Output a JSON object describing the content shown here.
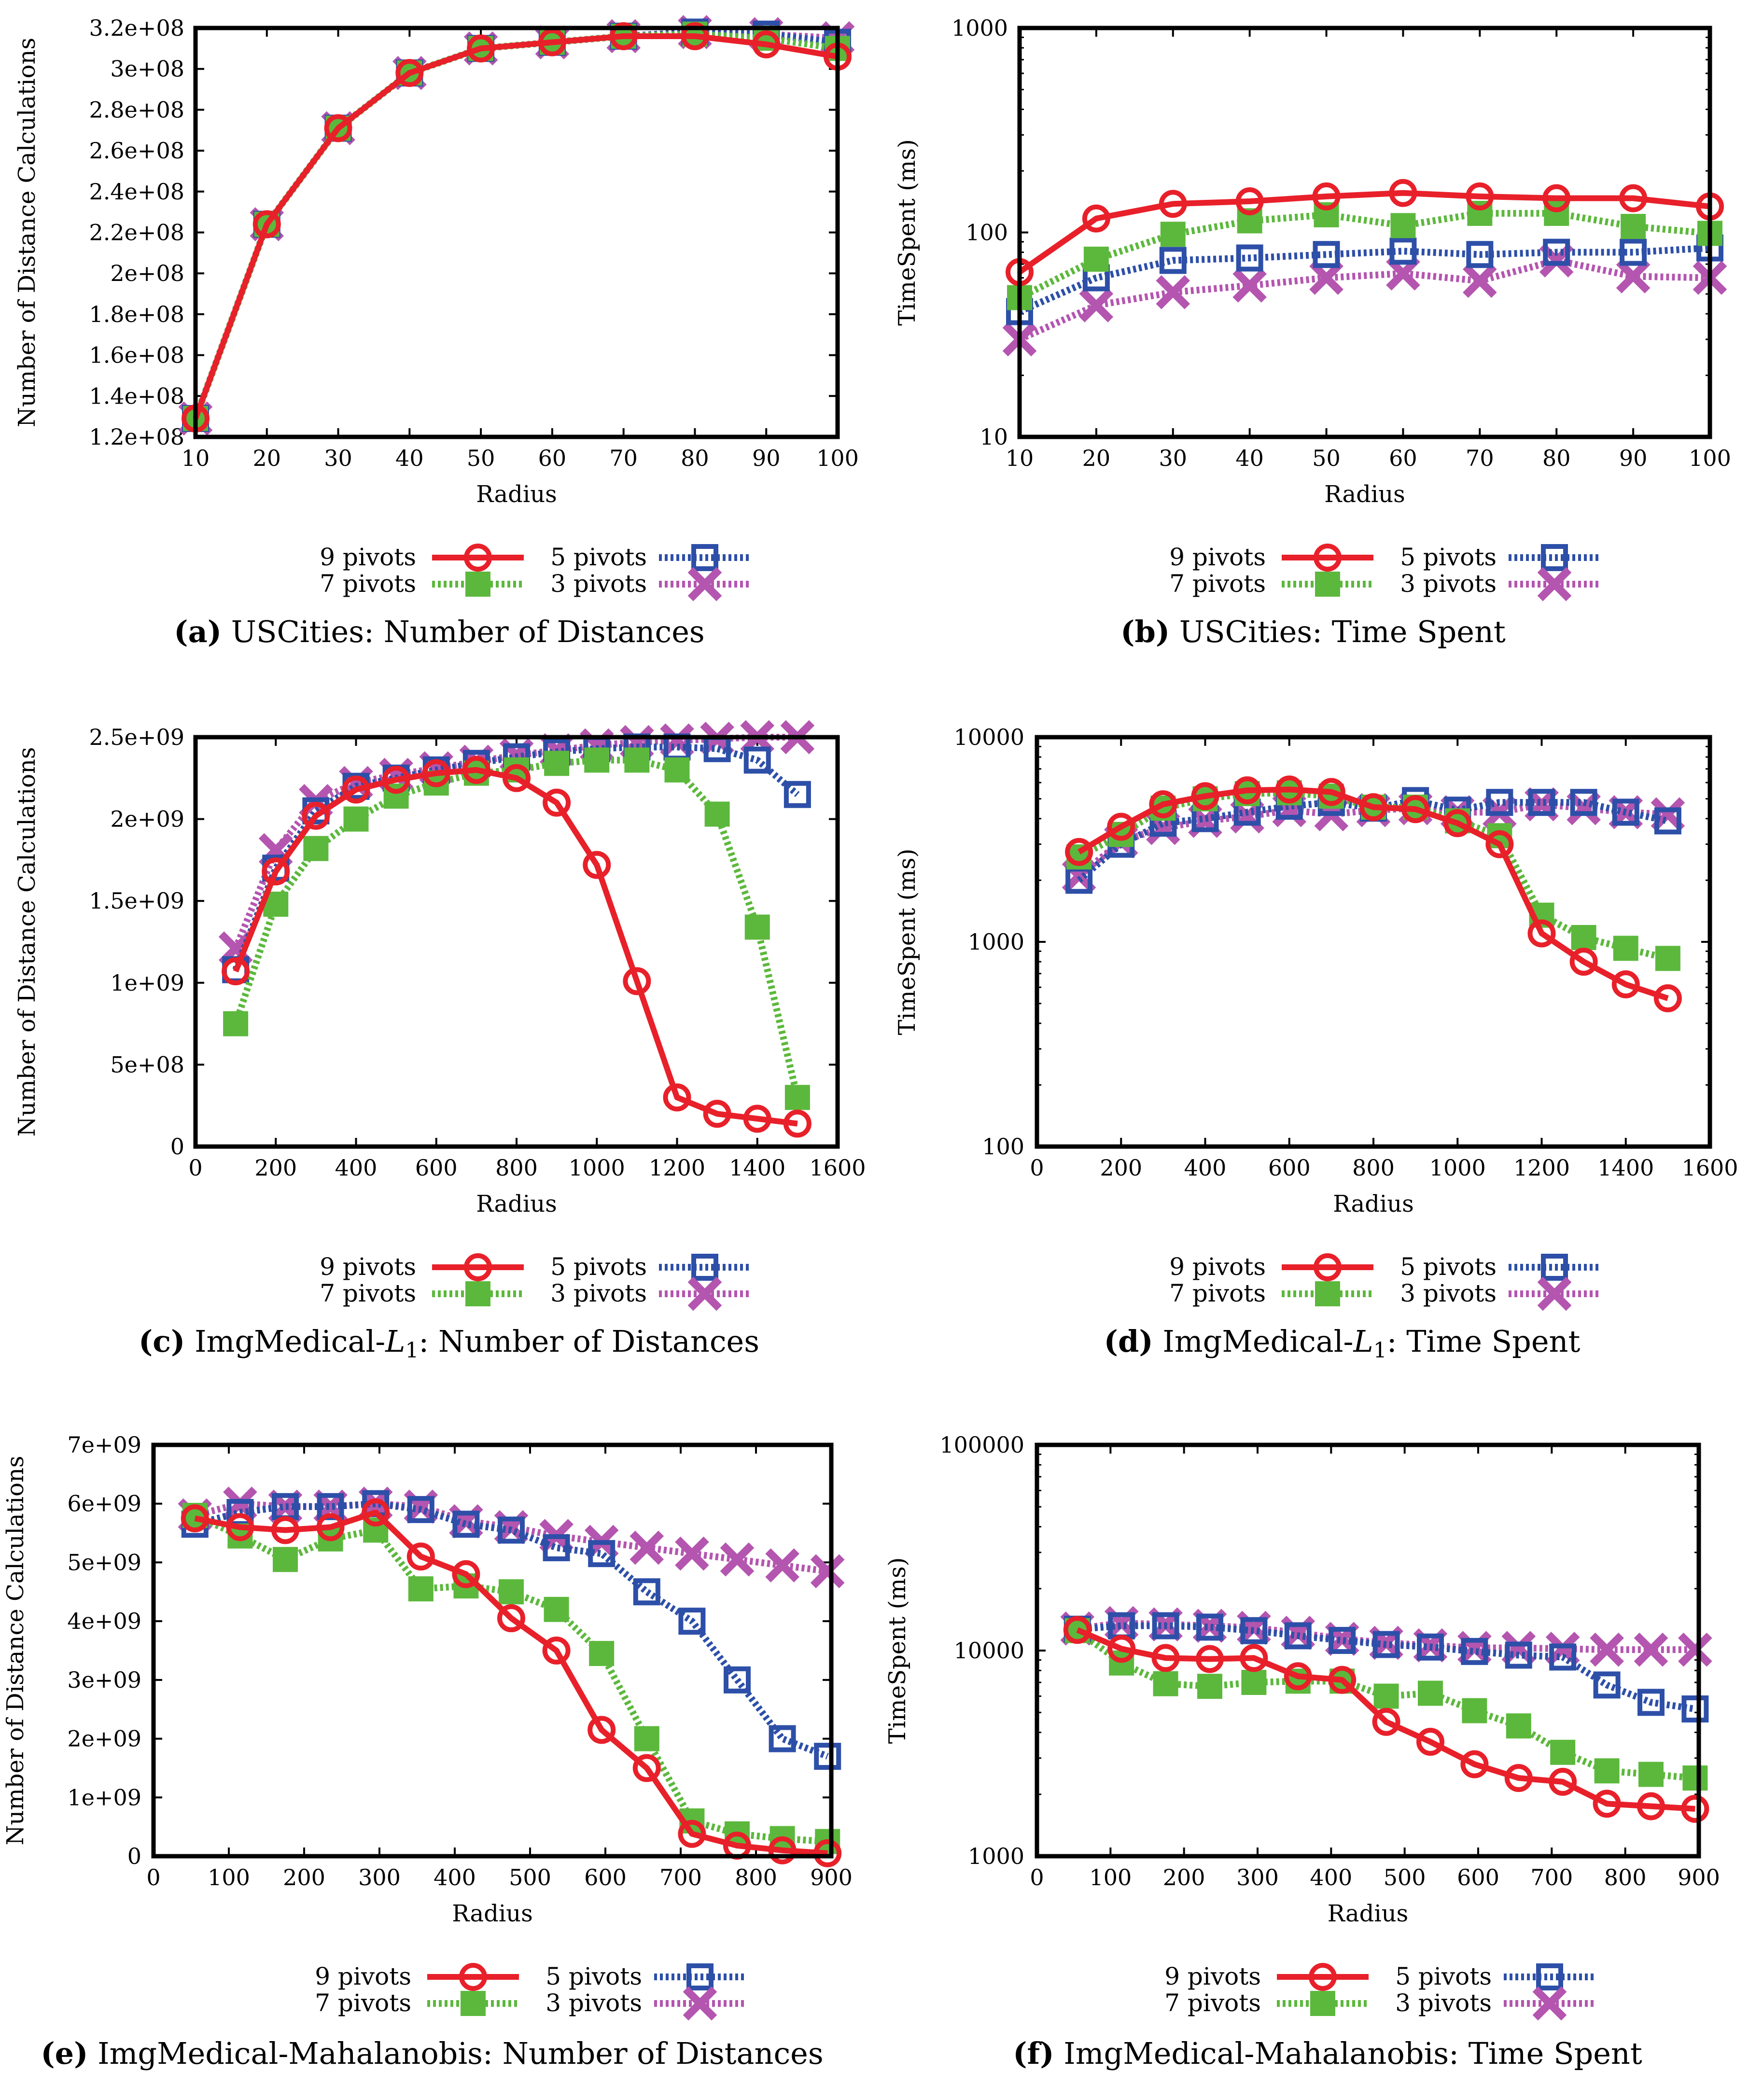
{
  "figure": {
    "legend_entries": [
      "9 pivots",
      "7 pivots",
      "5 pivots",
      "3 pivots"
    ]
  },
  "series_style": {
    "9 pivots": {
      "color": "#e8202a",
      "marker": "circle",
      "dash": "solid"
    },
    "7 pivots": {
      "color": "#5cb83c",
      "marker": "filled-square",
      "dash": "dotted"
    },
    "5 pivots": {
      "color": "#2d4fa8",
      "marker": "open-square",
      "dash": "dotted"
    },
    "3 pivots": {
      "color": "#b455b0",
      "marker": "x",
      "dash": "dotted"
    }
  },
  "chart_data": [
    {
      "id": "a",
      "type": "line",
      "caption_letter": "(a)",
      "caption_text": "USCities: Number of Distances",
      "xlabel": "Radius",
      "ylabel": "Number of Distance Calculations",
      "yscale": "linear",
      "xlim": [
        10,
        100
      ],
      "ylim": [
        120000000.0,
        320000000.0
      ],
      "xticks": [
        10,
        20,
        30,
        40,
        50,
        60,
        70,
        80,
        90,
        100
      ],
      "xtick_labels": [
        "10",
        "20",
        "30",
        "40",
        "50",
        "60",
        "70",
        "80",
        "90",
        "100"
      ],
      "yticks": [
        120000000.0,
        140000000.0,
        160000000.0,
        180000000.0,
        200000000.0,
        220000000.0,
        240000000.0,
        260000000.0,
        280000000.0,
        300000000.0,
        320000000.0
      ],
      "ytick_labels": [
        "1.2e+08",
        "1.4e+08",
        "1.6e+08",
        "1.8e+08",
        "2e+08",
        "2.2e+08",
        "2.4e+08",
        "2.6e+08",
        "2.8e+08",
        "3e+08",
        "3.2e+08"
      ],
      "x": [
        10,
        20,
        30,
        40,
        50,
        60,
        70,
        80,
        90,
        100
      ],
      "series": [
        {
          "name": "9 pivots",
          "values": [
            129000000.0,
            224000000.0,
            271000000.0,
            298000000.0,
            310000000.0,
            313000000.0,
            316000000.0,
            316000000.0,
            312000000.0,
            306000000.0
          ]
        },
        {
          "name": "7 pivots",
          "values": [
            129000000.0,
            224000000.0,
            271000000.0,
            298000000.0,
            310000000.0,
            313000000.0,
            316000000.0,
            317000000.0,
            315000000.0,
            310000000.0
          ]
        },
        {
          "name": "5 pivots",
          "values": [
            129000000.0,
            224000000.0,
            271000000.0,
            298000000.0,
            310000000.0,
            313000000.0,
            316000000.0,
            318000000.0,
            317000000.0,
            313000000.0
          ]
        },
        {
          "name": "3 pivots",
          "values": [
            129000000.0,
            224000000.0,
            271000000.0,
            298000000.0,
            310000000.0,
            313000000.0,
            316000000.0,
            318000000.0,
            317000000.0,
            315000000.0
          ]
        }
      ]
    },
    {
      "id": "b",
      "type": "line",
      "caption_letter": "(b)",
      "caption_text": "USCities: Time Spent",
      "xlabel": "Radius",
      "ylabel": "TimeSpent (ms)",
      "yscale": "log",
      "xlim": [
        10,
        100
      ],
      "ylim": [
        10,
        1000
      ],
      "xticks": [
        10,
        20,
        30,
        40,
        50,
        60,
        70,
        80,
        90,
        100
      ],
      "xtick_labels": [
        "10",
        "20",
        "30",
        "40",
        "50",
        "60",
        "70",
        "80",
        "90",
        "100"
      ],
      "yticks": [
        10,
        100,
        1000
      ],
      "ytick_labels": [
        "10",
        "100",
        "1000"
      ],
      "x": [
        10,
        20,
        30,
        40,
        50,
        60,
        70,
        80,
        90,
        100
      ],
      "series": [
        {
          "name": "9 pivots",
          "values": [
            64,
            117,
            138,
            142,
            150,
            156,
            150,
            147,
            147,
            134
          ]
        },
        {
          "name": "7 pivots",
          "values": [
            48,
            74,
            98,
            114,
            122,
            108,
            124,
            124,
            107,
            99
          ]
        },
        {
          "name": "5 pivots",
          "values": [
            41,
            60,
            73,
            75,
            78,
            81,
            78,
            80,
            80,
            84
          ]
        },
        {
          "name": "3 pivots",
          "values": [
            30,
            44,
            51,
            55,
            60,
            63,
            58,
            73,
            61,
            60
          ]
        }
      ]
    },
    {
      "id": "c",
      "type": "line",
      "caption_letter": "(c)",
      "caption_text": "ImgMedical-L1: Number of Distances",
      "caption_parts": [
        "ImgMedical-",
        "L",
        "1",
        ": Number of Distances"
      ],
      "xlabel": "Radius",
      "ylabel": "Number of Distance Calculations",
      "yscale": "linear",
      "xlim": [
        0,
        1600
      ],
      "ylim": [
        0,
        2500000000.0
      ],
      "xticks": [
        0,
        200,
        400,
        600,
        800,
        1000,
        1200,
        1400,
        1600
      ],
      "xtick_labels": [
        "0",
        "200",
        "400",
        "600",
        "800",
        "1000",
        "1200",
        "1400",
        "1600"
      ],
      "yticks": [
        0,
        500000000.0,
        1000000000.0,
        1500000000.0,
        2000000000.0,
        2500000000.0
      ],
      "ytick_labels": [
        "0",
        "5e+08",
        "1e+09",
        "1.5e+09",
        "2e+09",
        "2.5e+09"
      ],
      "x": [
        100,
        200,
        300,
        400,
        500,
        600,
        700,
        800,
        900,
        1000,
        1100,
        1200,
        1300,
        1400,
        1500
      ],
      "series": [
        {
          "name": "9 pivots",
          "values": [
            1070000000.0,
            1680000000.0,
            2020000000.0,
            2180000000.0,
            2240000000.0,
            2280000000.0,
            2300000000.0,
            2250000000.0,
            2100000000.0,
            1720000000.0,
            1010000000.0,
            300000000.0,
            200000000.0,
            170000000.0,
            140000000.0
          ]
        },
        {
          "name": "7 pivots",
          "values": [
            750000000.0,
            1480000000.0,
            1820000000.0,
            2000000000.0,
            2140000000.0,
            2220000000.0,
            2280000000.0,
            2300000000.0,
            2340000000.0,
            2360000000.0,
            2360000000.0,
            2300000000.0,
            2030000000.0,
            1340000000.0,
            300000000.0
          ]
        },
        {
          "name": "5 pivots",
          "values": [
            1080000000.0,
            1700000000.0,
            2050000000.0,
            2200000000.0,
            2250000000.0,
            2300000000.0,
            2340000000.0,
            2380000000.0,
            2410000000.0,
            2430000000.0,
            2440000000.0,
            2440000000.0,
            2430000000.0,
            2360000000.0,
            2150000000.0
          ]
        },
        {
          "name": "3 pivots",
          "values": [
            1210000000.0,
            1810000000.0,
            2110000000.0,
            2220000000.0,
            2270000000.0,
            2310000000.0,
            2350000000.0,
            2390000000.0,
            2420000000.0,
            2450000000.0,
            2470000000.0,
            2480000000.0,
            2490000000.0,
            2500000000.0,
            2500000000.0
          ]
        }
      ]
    },
    {
      "id": "d",
      "type": "line",
      "caption_letter": "(d)",
      "caption_text": "ImgMedical-L1: Time Spent",
      "caption_parts": [
        "ImgMedical-",
        "L",
        "1",
        ": Time Spent"
      ],
      "xlabel": "Radius",
      "ylabel": "TimeSpent (ms)",
      "yscale": "log",
      "xlim": [
        0,
        1600
      ],
      "ylim": [
        100,
        10000
      ],
      "xticks": [
        0,
        200,
        400,
        600,
        800,
        1000,
        1200,
        1400,
        1600
      ],
      "xtick_labels": [
        "0",
        "200",
        "400",
        "600",
        "800",
        "1000",
        "1200",
        "1400",
        "1600"
      ],
      "yticks": [
        100,
        1000,
        10000
      ],
      "ytick_labels": [
        "100",
        "1000",
        "10000"
      ],
      "x": [
        100,
        200,
        300,
        400,
        500,
        600,
        700,
        800,
        900,
        1000,
        1100,
        1200,
        1300,
        1400,
        1500
      ],
      "series": [
        {
          "name": "9 pivots",
          "values": [
            2750,
            3650,
            4700,
            5150,
            5500,
            5550,
            5400,
            4550,
            4450,
            3800,
            3000,
            1100,
            800,
            620,
            530
          ]
        },
        {
          "name": "7 pivots",
          "values": [
            2600,
            3350,
            4500,
            5000,
            5300,
            5350,
            5150,
            4550,
            4550,
            3900,
            3300,
            1350,
            1050,
            930,
            830
          ]
        },
        {
          "name": "5 pivots",
          "values": [
            2000,
            3000,
            3800,
            4000,
            4300,
            4600,
            4800,
            4500,
            4900,
            4400,
            4800,
            4800,
            4800,
            4300,
            3900
          ]
        },
        {
          "name": "3 pivots",
          "values": [
            2100,
            3100,
            3600,
            3900,
            4100,
            4400,
            4200,
            4400,
            4500,
            4300,
            4300,
            4700,
            4500,
            4300,
            4200
          ]
        }
      ]
    },
    {
      "id": "e",
      "type": "line",
      "caption_letter": "(e)",
      "caption_text": "ImgMedical-Mahalanobis: Number of Distances",
      "xlabel": "Radius",
      "ylabel": "Number of Distance Calculations",
      "yscale": "linear",
      "xlim": [
        0,
        900
      ],
      "ylim": [
        0,
        7000000000.0
      ],
      "xticks": [
        0,
        100,
        200,
        300,
        400,
        500,
        600,
        700,
        800,
        900
      ],
      "xtick_labels": [
        "0",
        "100",
        "200",
        "300",
        "400",
        "500",
        "600",
        "700",
        "800",
        "900"
      ],
      "yticks": [
        0,
        1000000000.0,
        2000000000.0,
        3000000000.0,
        4000000000.0,
        5000000000.0,
        6000000000.0,
        7000000000.0
      ],
      "ytick_labels": [
        "0",
        "1e+09",
        "2e+09",
        "3e+09",
        "4e+09",
        "5e+09",
        "6e+09",
        "7e+09"
      ],
      "x": [
        55,
        115,
        175,
        235,
        295,
        355,
        415,
        475,
        535,
        595,
        655,
        715,
        775,
        835,
        895
      ],
      "series": [
        {
          "name": "9 pivots",
          "values": [
            5750000000.0,
            5600000000.0,
            5550000000.0,
            5600000000.0,
            5850000000.0,
            5100000000.0,
            4800000000.0,
            4050000000.0,
            3500000000.0,
            2150000000.0,
            1500000000.0,
            380000000.0,
            180000000.0,
            100000000.0,
            50000000.0
          ]
        },
        {
          "name": "7 pivots",
          "values": [
            5800000000.0,
            5450000000.0,
            5050000000.0,
            5400000000.0,
            5550000000.0,
            4550000000.0,
            4600000000.0,
            4500000000.0,
            4200000000.0,
            3450000000.0,
            2000000000.0,
            600000000.0,
            380000000.0,
            300000000.0,
            250000000.0
          ]
        },
        {
          "name": "5 pivots",
          "values": [
            5650000000.0,
            5850000000.0,
            5950000000.0,
            5950000000.0,
            6000000000.0,
            5900000000.0,
            5650000000.0,
            5550000000.0,
            5250000000.0,
            5150000000.0,
            4500000000.0,
            4000000000.0,
            3000000000.0,
            2000000000.0,
            1700000000.0
          ]
        },
        {
          "name": "3 pivots",
          "values": [
            5800000000.0,
            6000000000.0,
            5950000000.0,
            5950000000.0,
            6000000000.0,
            5950000000.0,
            5700000000.0,
            5600000000.0,
            5450000000.0,
            5350000000.0,
            5250000000.0,
            5150000000.0,
            5050000000.0,
            4950000000.0,
            4850000000.0
          ]
        }
      ]
    },
    {
      "id": "f",
      "type": "line",
      "caption_letter": "(f)",
      "caption_text": "ImgMedical-Mahalanobis: Time Spent",
      "xlabel": "Radius",
      "ylabel": "TimeSpent (ms)",
      "yscale": "log",
      "xlim": [
        0,
        900
      ],
      "ylim": [
        1000,
        100000
      ],
      "xticks": [
        0,
        100,
        200,
        300,
        400,
        500,
        600,
        700,
        800,
        900
      ],
      "xtick_labels": [
        "0",
        "100",
        "200",
        "300",
        "400",
        "500",
        "600",
        "700",
        "800",
        "900"
      ],
      "yticks": [
        1000,
        10000,
        100000
      ],
      "ytick_labels": [
        "1000",
        "10000",
        "100000"
      ],
      "x": [
        55,
        115,
        175,
        235,
        295,
        355,
        415,
        475,
        535,
        595,
        655,
        715,
        775,
        835,
        895
      ],
      "series": [
        {
          "name": "9 pivots",
          "values": [
            12600,
            10200,
            9200,
            9100,
            9200,
            7500,
            7200,
            4500,
            3600,
            2800,
            2400,
            2300,
            1800,
            1750,
            1700
          ]
        },
        {
          "name": "7 pivots",
          "values": [
            12500,
            8700,
            6900,
            6700,
            7000,
            7100,
            7100,
            6000,
            6200,
            5100,
            4300,
            3200,
            2600,
            2500,
            2400
          ]
        },
        {
          "name": "5 pivots",
          "values": [
            12700,
            13200,
            13200,
            13000,
            12500,
            11800,
            11200,
            10700,
            10400,
            9900,
            9500,
            9300,
            6800,
            5600,
            5200
          ]
        },
        {
          "name": "3 pivots",
          "values": [
            12800,
            13600,
            13400,
            13200,
            12900,
            12200,
            11400,
            10900,
            10600,
            10300,
            10300,
            10200,
            10100,
            10100,
            10100
          ]
        }
      ]
    }
  ]
}
